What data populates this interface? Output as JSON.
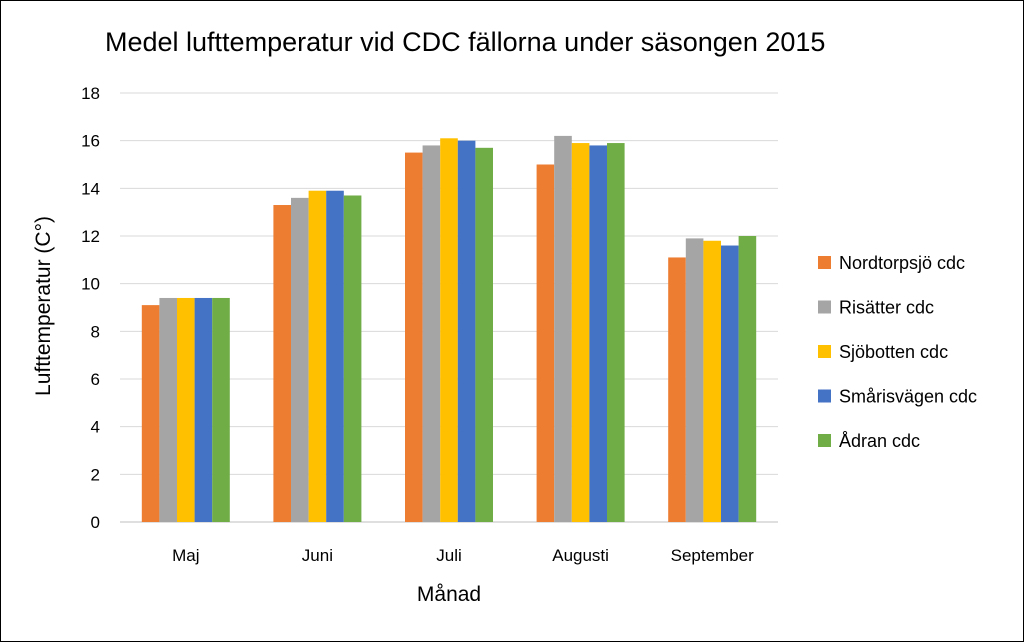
{
  "chart_data": {
    "type": "bar",
    "title": "Medel lufttemperatur vid CDC fällorna under säsongen 2015",
    "xlabel": "Månad",
    "ylabel": "Lufttemperatur (C°)",
    "ylim": [
      0,
      18
    ],
    "yticks": [
      "0",
      "2",
      "4",
      "6",
      "8",
      "10",
      "12",
      "14",
      "16",
      "18"
    ],
    "grid": true,
    "legend_position": "right",
    "categories": [
      "Maj",
      "Juni",
      "Juli",
      "Augusti",
      "September"
    ],
    "series": [
      {
        "name": "Nordtorpsjö cdc",
        "color": "#ED7D31",
        "values": [
          9.1,
          13.3,
          15.5,
          15.0,
          11.1
        ]
      },
      {
        "name": "Risätter cdc",
        "color": "#A5A5A5",
        "values": [
          9.4,
          13.6,
          15.8,
          16.2,
          11.9
        ]
      },
      {
        "name": "Sjöbotten cdc",
        "color": "#FFC000",
        "values": [
          9.4,
          13.9,
          16.1,
          15.9,
          11.8
        ]
      },
      {
        "name": "Smårisvägen cdc",
        "color": "#4472C4",
        "values": [
          9.4,
          13.9,
          16.0,
          15.8,
          11.6
        ]
      },
      {
        "name": "Ådran cdc",
        "color": "#70AD47",
        "values": [
          9.4,
          13.7,
          15.7,
          15.9,
          12.0
        ]
      }
    ]
  }
}
